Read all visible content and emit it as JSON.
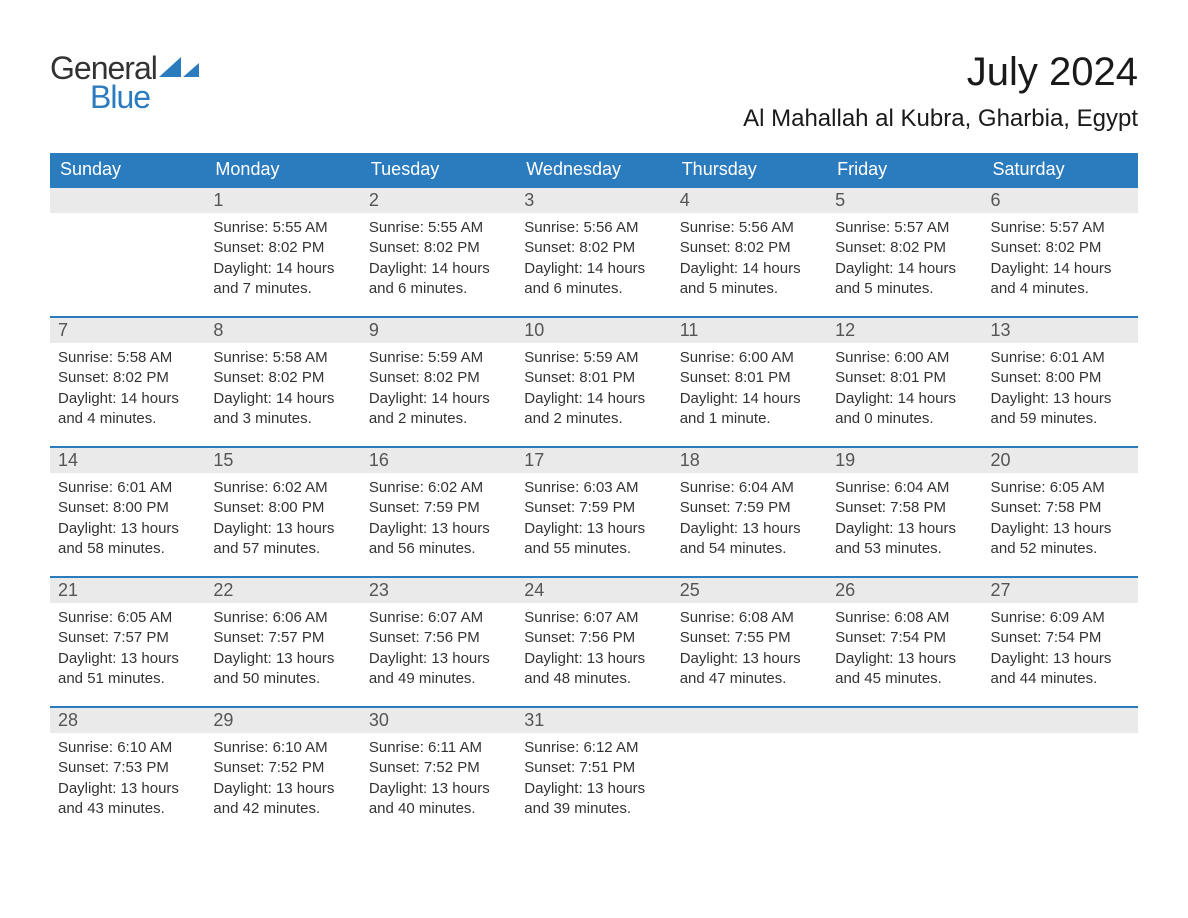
{
  "logo": {
    "text1": "General",
    "text2": "Blue",
    "color1": "#333333",
    "color2": "#2b7bbf"
  },
  "title": "July 2024",
  "location": "Al Mahallah al Kubra, Gharbia, Egypt",
  "header_bg": "#2b7bbf",
  "daynum_bg": "#eaeaea",
  "daynum_border": "#2b7bbf",
  "text_color": "#333333",
  "columns": [
    "Sunday",
    "Monday",
    "Tuesday",
    "Wednesday",
    "Thursday",
    "Friday",
    "Saturday"
  ],
  "weeks": [
    [
      null,
      {
        "d": "1",
        "sunrise": "5:55 AM",
        "sunset": "8:02 PM",
        "daylight": "14 hours and 7 minutes."
      },
      {
        "d": "2",
        "sunrise": "5:55 AM",
        "sunset": "8:02 PM",
        "daylight": "14 hours and 6 minutes."
      },
      {
        "d": "3",
        "sunrise": "5:56 AM",
        "sunset": "8:02 PM",
        "daylight": "14 hours and 6 minutes."
      },
      {
        "d": "4",
        "sunrise": "5:56 AM",
        "sunset": "8:02 PM",
        "daylight": "14 hours and 5 minutes."
      },
      {
        "d": "5",
        "sunrise": "5:57 AM",
        "sunset": "8:02 PM",
        "daylight": "14 hours and 5 minutes."
      },
      {
        "d": "6",
        "sunrise": "5:57 AM",
        "sunset": "8:02 PM",
        "daylight": "14 hours and 4 minutes."
      }
    ],
    [
      {
        "d": "7",
        "sunrise": "5:58 AM",
        "sunset": "8:02 PM",
        "daylight": "14 hours and 4 minutes."
      },
      {
        "d": "8",
        "sunrise": "5:58 AM",
        "sunset": "8:02 PM",
        "daylight": "14 hours and 3 minutes."
      },
      {
        "d": "9",
        "sunrise": "5:59 AM",
        "sunset": "8:02 PM",
        "daylight": "14 hours and 2 minutes."
      },
      {
        "d": "10",
        "sunrise": "5:59 AM",
        "sunset": "8:01 PM",
        "daylight": "14 hours and 2 minutes."
      },
      {
        "d": "11",
        "sunrise": "6:00 AM",
        "sunset": "8:01 PM",
        "daylight": "14 hours and 1 minute."
      },
      {
        "d": "12",
        "sunrise": "6:00 AM",
        "sunset": "8:01 PM",
        "daylight": "14 hours and 0 minutes."
      },
      {
        "d": "13",
        "sunrise": "6:01 AM",
        "sunset": "8:00 PM",
        "daylight": "13 hours and 59 minutes."
      }
    ],
    [
      {
        "d": "14",
        "sunrise": "6:01 AM",
        "sunset": "8:00 PM",
        "daylight": "13 hours and 58 minutes."
      },
      {
        "d": "15",
        "sunrise": "6:02 AM",
        "sunset": "8:00 PM",
        "daylight": "13 hours and 57 minutes."
      },
      {
        "d": "16",
        "sunrise": "6:02 AM",
        "sunset": "7:59 PM",
        "daylight": "13 hours and 56 minutes."
      },
      {
        "d": "17",
        "sunrise": "6:03 AM",
        "sunset": "7:59 PM",
        "daylight": "13 hours and 55 minutes."
      },
      {
        "d": "18",
        "sunrise": "6:04 AM",
        "sunset": "7:59 PM",
        "daylight": "13 hours and 54 minutes."
      },
      {
        "d": "19",
        "sunrise": "6:04 AM",
        "sunset": "7:58 PM",
        "daylight": "13 hours and 53 minutes."
      },
      {
        "d": "20",
        "sunrise": "6:05 AM",
        "sunset": "7:58 PM",
        "daylight": "13 hours and 52 minutes."
      }
    ],
    [
      {
        "d": "21",
        "sunrise": "6:05 AM",
        "sunset": "7:57 PM",
        "daylight": "13 hours and 51 minutes."
      },
      {
        "d": "22",
        "sunrise": "6:06 AM",
        "sunset": "7:57 PM",
        "daylight": "13 hours and 50 minutes."
      },
      {
        "d": "23",
        "sunrise": "6:07 AM",
        "sunset": "7:56 PM",
        "daylight": "13 hours and 49 minutes."
      },
      {
        "d": "24",
        "sunrise": "6:07 AM",
        "sunset": "7:56 PM",
        "daylight": "13 hours and 48 minutes."
      },
      {
        "d": "25",
        "sunrise": "6:08 AM",
        "sunset": "7:55 PM",
        "daylight": "13 hours and 47 minutes."
      },
      {
        "d": "26",
        "sunrise": "6:08 AM",
        "sunset": "7:54 PM",
        "daylight": "13 hours and 45 minutes."
      },
      {
        "d": "27",
        "sunrise": "6:09 AM",
        "sunset": "7:54 PM",
        "daylight": "13 hours and 44 minutes."
      }
    ],
    [
      {
        "d": "28",
        "sunrise": "6:10 AM",
        "sunset": "7:53 PM",
        "daylight": "13 hours and 43 minutes."
      },
      {
        "d": "29",
        "sunrise": "6:10 AM",
        "sunset": "7:52 PM",
        "daylight": "13 hours and 42 minutes."
      },
      {
        "d": "30",
        "sunrise": "6:11 AM",
        "sunset": "7:52 PM",
        "daylight": "13 hours and 40 minutes."
      },
      {
        "d": "31",
        "sunrise": "6:12 AM",
        "sunset": "7:51 PM",
        "daylight": "13 hours and 39 minutes."
      },
      null,
      null,
      null
    ]
  ],
  "labels": {
    "sunrise": "Sunrise: ",
    "sunset": "Sunset: ",
    "daylight": "Daylight: "
  }
}
